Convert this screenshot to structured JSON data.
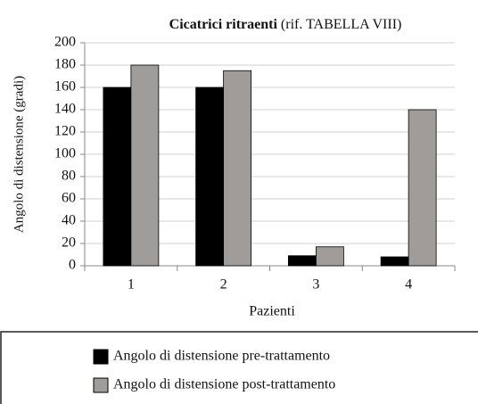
{
  "chart_data": {
    "type": "bar",
    "title": "Cicatrici ritraenti",
    "title_note": "(rif. TABELLA VIII)",
    "x_label": "Pazienti",
    "y_label": "Angolo di distensione (gradi)",
    "categories": [
      "1",
      "2",
      "3",
      "4"
    ],
    "series": [
      {
        "name": "Angolo di distensione pre-trattamento",
        "color": "#000000",
        "values": [
          160,
          160,
          9,
          8
        ]
      },
      {
        "name": "Angolo di distensione post-trattamento",
        "color": "#a09c9a",
        "values": [
          180,
          175,
          17,
          140
        ]
      }
    ],
    "ylim": [
      0,
      200
    ],
    "yticks": [
      0,
      20,
      40,
      60,
      80,
      100,
      120,
      140,
      160,
      180,
      200
    ],
    "grid": true,
    "legend": "bottom"
  }
}
